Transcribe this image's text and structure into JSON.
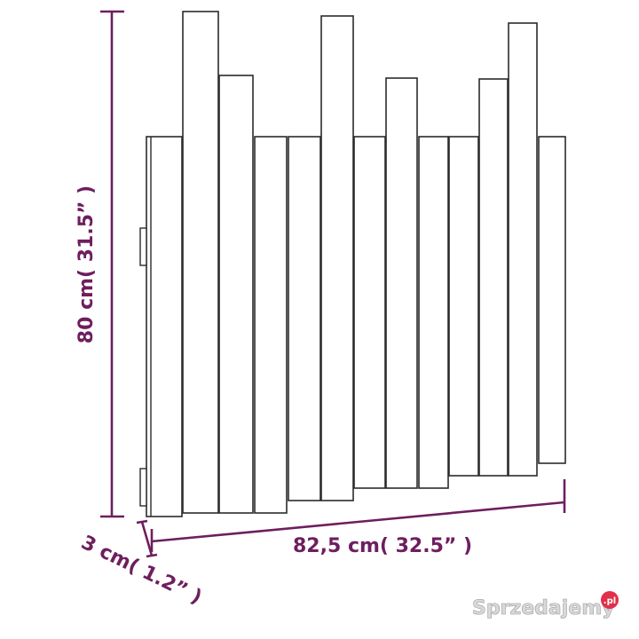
{
  "dimensions": {
    "height_label": "80 cm( 31.5” )",
    "width_label": "82,5 cm( 32.5”  )",
    "depth_label": "3 cm( 1.2”  )"
  },
  "watermark": {
    "text": "Sprzedajemy",
    "suffix": ".pl"
  },
  "colors": {
    "dimension": "#6e1e5e",
    "outline": "#2b2b2b",
    "watermark_text": "#d9d9d9",
    "watermark_badge": "#e0304a"
  }
}
